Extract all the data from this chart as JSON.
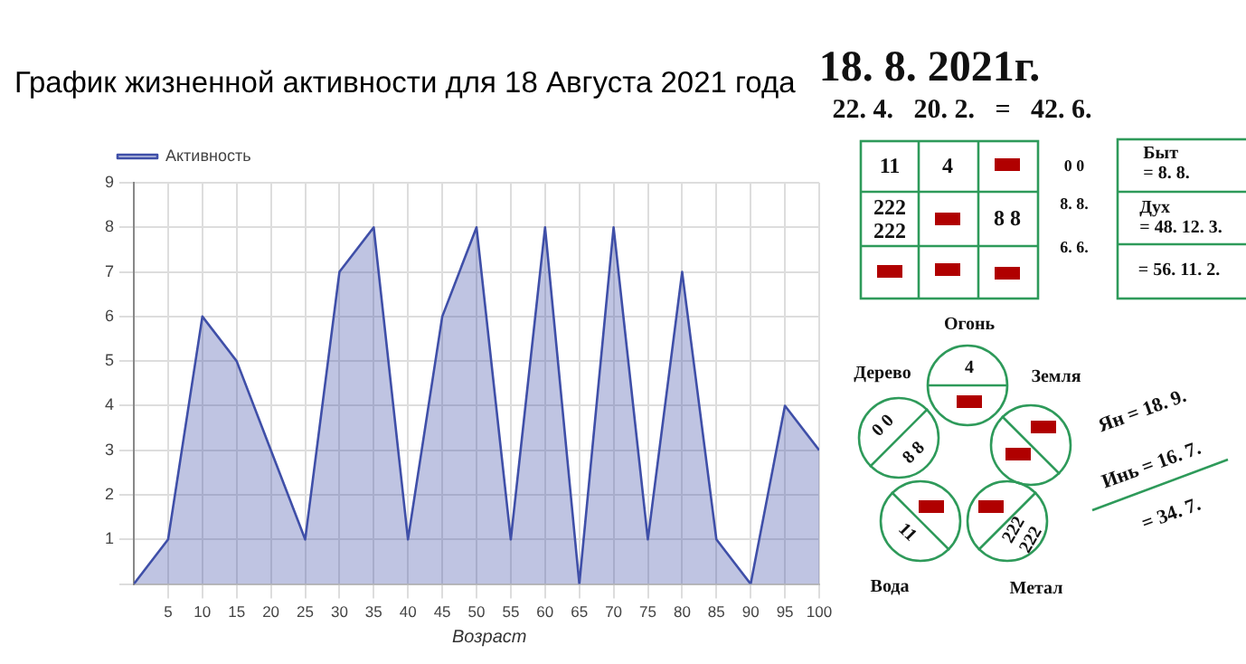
{
  "chart_data": {
    "type": "area",
    "title": "График жизненной активности для 18 Августа 2021 года",
    "xlabel": "Возраст",
    "x": [
      0,
      5,
      10,
      15,
      20,
      25,
      30,
      35,
      40,
      45,
      50,
      55,
      60,
      65,
      70,
      75,
      80,
      85,
      90,
      95,
      100
    ],
    "series": [
      {
        "name": "Активность",
        "color": "#3f4fa8",
        "values": [
          0,
          1,
          6,
          5,
          3,
          1,
          7,
          8,
          1,
          6,
          8,
          1,
          8,
          0,
          8,
          1,
          7,
          1,
          0,
          4,
          3
        ]
      }
    ],
    "xlim": [
      0,
      100
    ],
    "xticks": [
      5,
      10,
      15,
      20,
      25,
      30,
      35,
      40,
      45,
      50,
      55,
      60,
      65,
      70,
      75,
      80,
      85,
      90,
      95,
      100
    ],
    "ylim": [
      0,
      9
    ],
    "yticks": [
      {
        "value": 0,
        "label": null
      },
      1,
      2,
      3,
      4,
      5,
      6,
      7,
      8,
      9
    ],
    "grid": true,
    "legend": "top left",
    "marker": "none",
    "annotations": [
      "18. 8. 2021г.",
      "22. 4.   20. 2.   =   42. 6.",
      "11",
      "4",
      "222\n222",
      "8 8",
      "0 0",
      "8. 8.",
      "6. 6.",
      "Быт\n= 8. 8.",
      "Дух\n= 48. 12. 3.",
      "= 56. 11. 2.",
      "Огонь",
      "Дерево",
      "Земля",
      "Вода",
      "Метал",
      "4",
      "0 0",
      "8 8",
      "11",
      "222\n222",
      "Ян = 18. 9.",
      "Инь = 16. 7.",
      "= 34. 7."
    ]
  }
}
